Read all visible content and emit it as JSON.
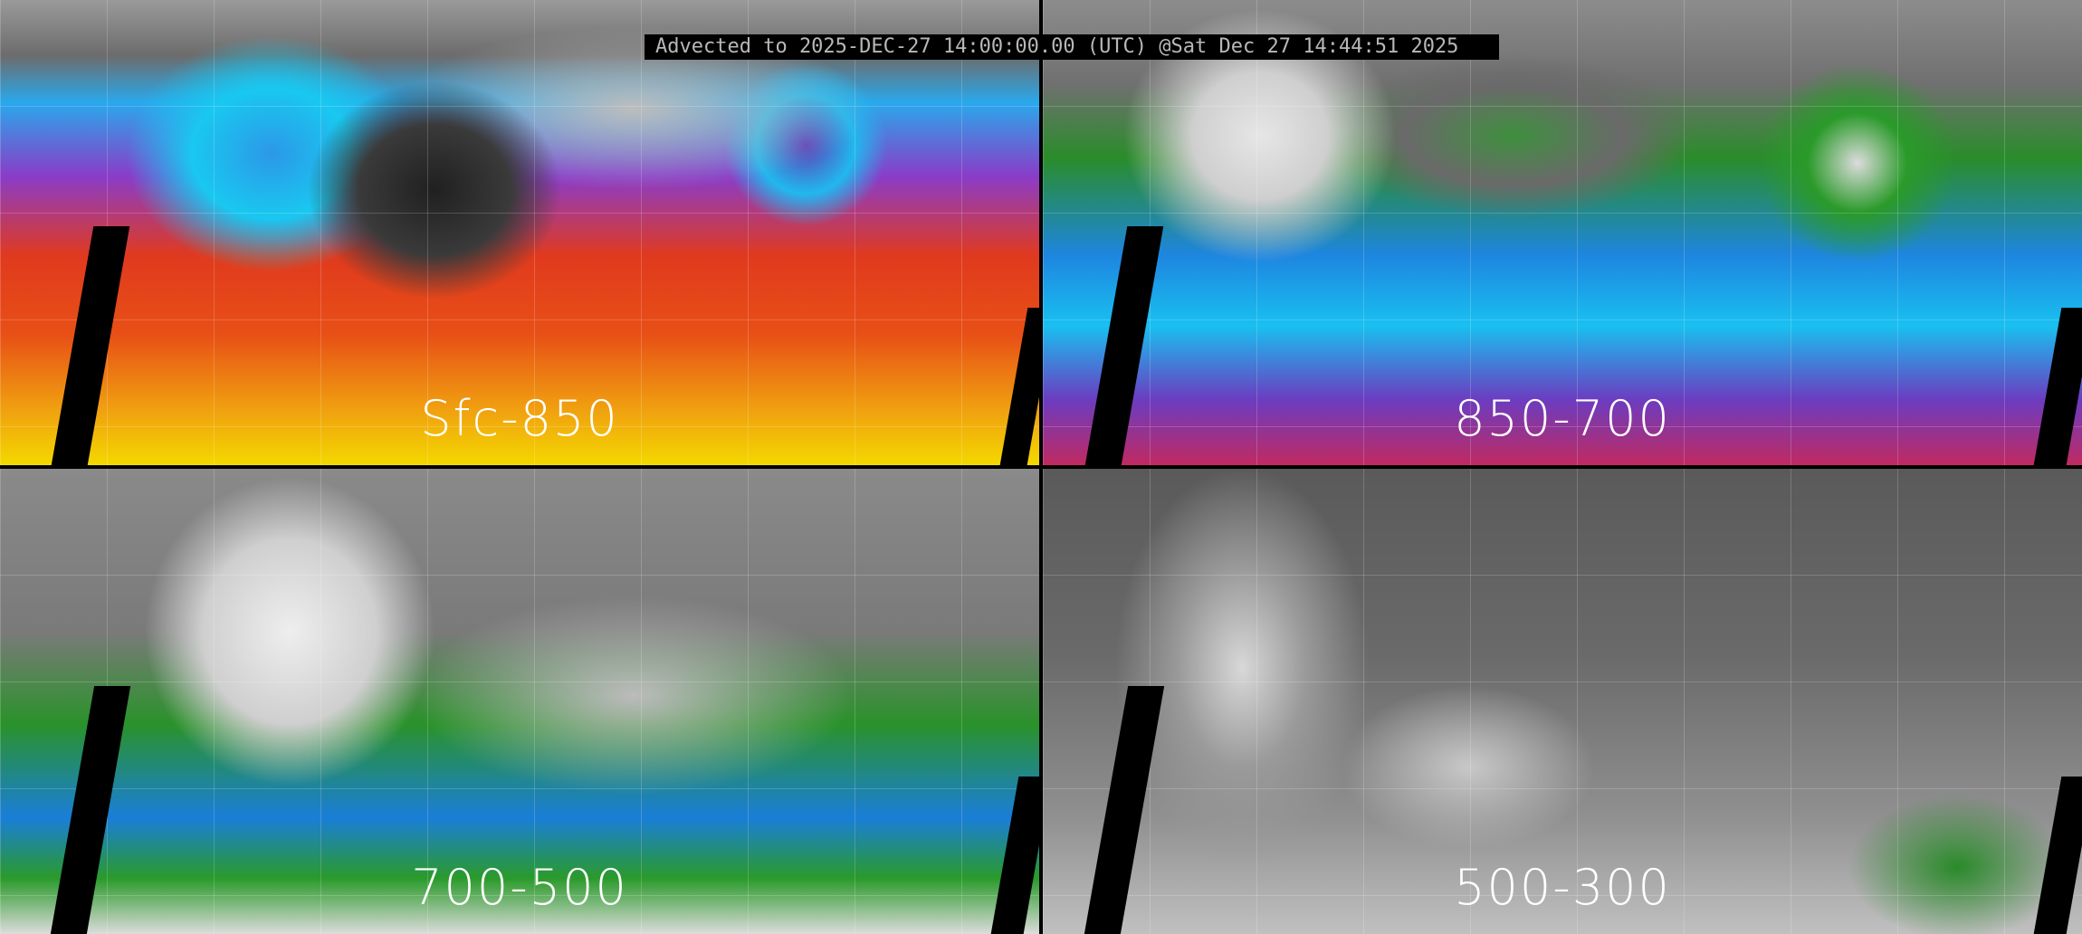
{
  "header": {
    "title": "Advected to 2025-DEC-27 14:00:00.00 (UTC) @Sat Dec 27 14:44:51 2025"
  },
  "panels": [
    {
      "label": "Sfc-850"
    },
    {
      "label": "850-700"
    },
    {
      "label": "700-500"
    },
    {
      "label": "500-300"
    }
  ],
  "colors": {
    "background": "#000000",
    "title_text": "#b8b8b8",
    "label_text": "#ffffff"
  }
}
